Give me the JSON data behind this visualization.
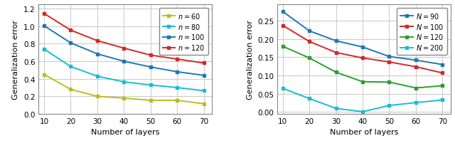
{
  "x": [
    10,
    20,
    30,
    40,
    50,
    60,
    70
  ],
  "left_plot": {
    "ylabel": "Generalization error",
    "xlabel": "Number of layers",
    "ylim": [
      0.0,
      1.25
    ],
    "yticks": [
      0.0,
      0.2,
      0.4,
      0.6,
      0.8,
      1.0,
      1.2
    ],
    "series": [
      {
        "label": "$n = 60$",
        "color": "#bcbd22",
        "data": [
          0.45,
          0.28,
          0.2,
          0.18,
          0.155,
          0.155,
          0.115
        ]
      },
      {
        "label": "$n = 80$",
        "color": "#17becf",
        "data": [
          0.74,
          0.54,
          0.43,
          0.365,
          0.33,
          0.3,
          0.265
        ]
      },
      {
        "label": "$n = 100$",
        "color": "#1f77b4",
        "data": [
          1.005,
          0.81,
          0.685,
          0.6,
          0.535,
          0.48,
          0.44
        ]
      },
      {
        "label": "$n = 120$",
        "color": "#d62728",
        "data": [
          1.145,
          0.955,
          0.835,
          0.75,
          0.67,
          0.625,
          0.58
        ]
      }
    ]
  },
  "right_plot": {
    "ylabel": "Generalization error",
    "xlabel": "Number of layers",
    "ylim": [
      -0.005,
      0.295
    ],
    "yticks": [
      0.0,
      0.05,
      0.1,
      0.15,
      0.2,
      0.25
    ],
    "series": [
      {
        "label": "$N = 90$",
        "color": "#1f77b4",
        "data": [
          0.275,
          0.222,
          0.195,
          0.178,
          0.152,
          0.142,
          0.13
        ]
      },
      {
        "label": "$N = 100$",
        "color": "#d62728",
        "data": [
          0.237,
          0.193,
          0.163,
          0.148,
          0.137,
          0.124,
          0.107
        ]
      },
      {
        "label": "$N = 120$",
        "color": "#2ca02c",
        "data": [
          0.18,
          0.148,
          0.109,
          0.083,
          0.082,
          0.066,
          0.072
        ]
      },
      {
        "label": "$N = 200$",
        "color": "#17becf",
        "data": [
          0.065,
          0.037,
          0.01,
          0.001,
          0.018,
          0.026,
          0.033
        ]
      }
    ]
  }
}
